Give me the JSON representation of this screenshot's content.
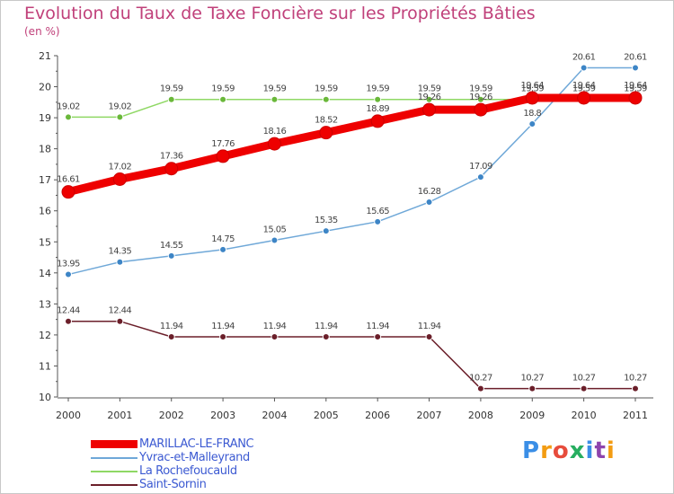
{
  "title": "Evolution du Taux de Taxe Foncière sur les Propriétés Bâties",
  "unit": "(en %)",
  "brand": {
    "text": "Proxiti",
    "colors": [
      "#3a8ee6",
      "#f39c12",
      "#e74c3c",
      "#27ae60",
      "#3a8ee6",
      "#8e44ad",
      "#f39c12"
    ]
  },
  "chart_data": {
    "type": "line",
    "title": "Evolution du Taux de Taxe Foncière sur les Propriétés Bâties",
    "ylabel": "(en %)",
    "xlabel": "",
    "ylim": [
      10,
      21
    ],
    "yticks": [
      "10",
      "11",
      "12",
      "13",
      "14",
      "15",
      "16",
      "17",
      "18",
      "19",
      "20",
      "21"
    ],
    "categories": [
      "2000",
      "2001",
      "2002",
      "2003",
      "2004",
      "2005",
      "2006",
      "2007",
      "2008",
      "2009",
      "2010",
      "2011"
    ],
    "series": [
      {
        "name": "Saint-Sornin",
        "color": "#6b1f2a",
        "marker": "#6b1f2a",
        "values": [
          12.44,
          12.44,
          11.94,
          11.94,
          11.94,
          11.94,
          11.94,
          11.94,
          10.27,
          10.27,
          10.27,
          10.27
        ],
        "labels": [
          "12.44",
          "12.44",
          "11.94",
          "11.94",
          "11.94",
          "11.94",
          "11.94",
          "11.94",
          "10.27",
          "10.27",
          "10.27",
          "10.27"
        ]
      },
      {
        "name": "Yvrac-et-Malleyrand",
        "color": "#6fa8d8",
        "marker": "#3d85c6",
        "values": [
          13.95,
          14.35,
          14.55,
          14.75,
          15.05,
          15.35,
          15.65,
          16.28,
          17.09,
          18.8,
          20.61,
          20.61
        ],
        "labels": [
          "13.95",
          "14.35",
          "14.55",
          "14.75",
          "15.05",
          "15.35",
          "15.65",
          "16.28",
          "17.09",
          "18.8",
          "20.61",
          "20.61"
        ]
      },
      {
        "name": "La Rochefoucauld",
        "color": "#8fd864",
        "marker": "#6ab83a",
        "values": [
          19.02,
          19.02,
          19.59,
          19.59,
          19.59,
          19.59,
          19.59,
          19.59,
          19.59,
          19.59,
          19.59,
          19.59
        ],
        "labels": [
          "19.02",
          "19.02",
          "19.59",
          "19.59",
          "19.59",
          "19.59",
          "19.59",
          "19.59",
          "19.59",
          "19.59",
          "19.59",
          "19.59"
        ]
      },
      {
        "name": "MARILLAC-LE-FRANC",
        "color": "#ee0000",
        "marker": "#ee0000",
        "values": [
          16.61,
          17.02,
          17.36,
          17.76,
          18.16,
          18.52,
          18.89,
          19.26,
          19.26,
          19.64,
          19.64,
          19.64
        ],
        "labels": [
          "16.61",
          "17.02",
          "17.36",
          "17.76",
          "18.16",
          "18.52",
          "18.89",
          "19.26",
          "19.26",
          "19.64",
          "19.64",
          "19.64"
        ]
      }
    ],
    "legend": [
      {
        "name": "MARILLAC-LE-FRANC",
        "color": "#ee0000"
      },
      {
        "name": "Yvrac-et-Malleyrand",
        "color": "#6fa8d8"
      },
      {
        "name": "La Rochefoucauld",
        "color": "#8fd864"
      },
      {
        "name": "Saint-Sornin",
        "color": "#6b1f2a"
      }
    ]
  }
}
